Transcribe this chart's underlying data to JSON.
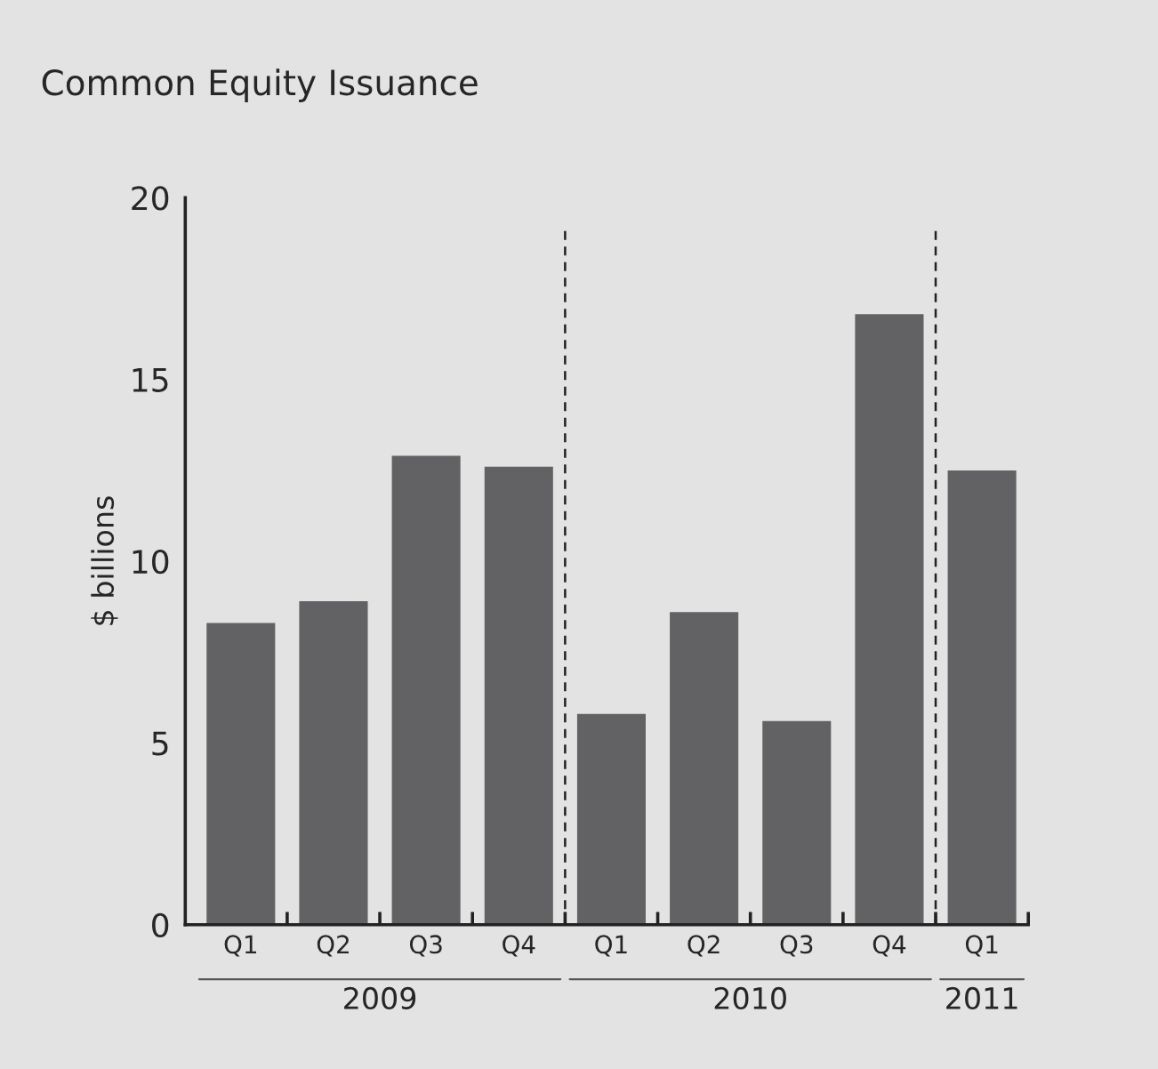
{
  "chart_data": {
    "type": "bar",
    "title": "Common Equity Issuance",
    "ylabel": "$ billions",
    "categories": [
      "Q1",
      "Q2",
      "Q3",
      "Q4",
      "Q1",
      "Q2",
      "Q3",
      "Q4",
      "Q1"
    ],
    "values": [
      8.3,
      8.9,
      12.9,
      12.6,
      5.8,
      8.6,
      5.6,
      16.8,
      12.5
    ],
    "color": "#626264",
    "ylim": [
      0,
      20
    ],
    "yticks": [
      0,
      5,
      10,
      15,
      20
    ],
    "grid": false,
    "annotations": [
      "2009",
      "2010",
      "2011"
    ]
  }
}
